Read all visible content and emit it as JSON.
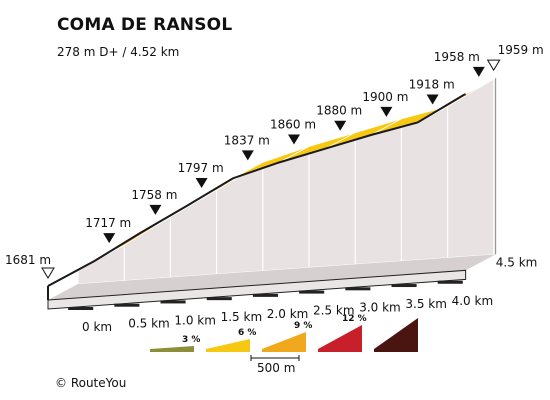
{
  "title": "COMA DE RANSOL",
  "subtitle": "278 m D+ / 4.52 km",
  "credit": "© RouteYou",
  "chart_data": {
    "type": "area",
    "title": "COMA DE RANSOL",
    "x_unit": "km",
    "y_unit": "m",
    "points": [
      {
        "x": 0.0,
        "y": 1681,
        "label": "1681 m",
        "marker": "start"
      },
      {
        "x": 0.5,
        "y": 1717,
        "label": "1717 m",
        "marker": "km"
      },
      {
        "x": 1.0,
        "y": 1758,
        "label": "1758 m",
        "marker": "km"
      },
      {
        "x": 1.5,
        "y": 1797,
        "label": "1797 m",
        "marker": "km"
      },
      {
        "x": 2.0,
        "y": 1837,
        "label": "1837 m",
        "marker": "km"
      },
      {
        "x": 2.5,
        "y": 1860,
        "label": "1860 m",
        "marker": "km"
      },
      {
        "x": 3.0,
        "y": 1880,
        "label": "1880 m",
        "marker": "km"
      },
      {
        "x": 3.5,
        "y": 1900,
        "label": "1900 m",
        "marker": "km"
      },
      {
        "x": 4.0,
        "y": 1918,
        "label": "1918 m",
        "marker": "km"
      },
      {
        "x": 4.5,
        "y": 1958,
        "label": "1958 m",
        "marker": "km"
      },
      {
        "x": 4.52,
        "y": 1959,
        "label": "1959 m",
        "marker": "end"
      }
    ],
    "x_ticks": [
      "0 km",
      "0.5 km",
      "1.0 km",
      "1.5 km",
      "2.0 km",
      "2.5 km",
      "3.0 km",
      "3.5 km",
      "4.0 km",
      "4.5 km"
    ],
    "segment_colors": [
      "#f0a81c",
      "#f0a81c",
      "#f0a81c",
      "#f0a81c",
      "#f7c811",
      "#f7c811",
      "#f7c811",
      "#f7c811",
      "#f0a81c"
    ],
    "legend": {
      "scale_label": "500 m",
      "items": [
        {
          "label": "3 %",
          "color": "#8b8f3a"
        },
        {
          "label": "6 %",
          "color": "#f7c811"
        },
        {
          "label": "9 %",
          "color": "#f0a81c"
        },
        {
          "label": "12 %",
          "color": "#c8202a"
        },
        {
          "label": "",
          "color": "#4a1410"
        }
      ]
    },
    "grid": false
  }
}
